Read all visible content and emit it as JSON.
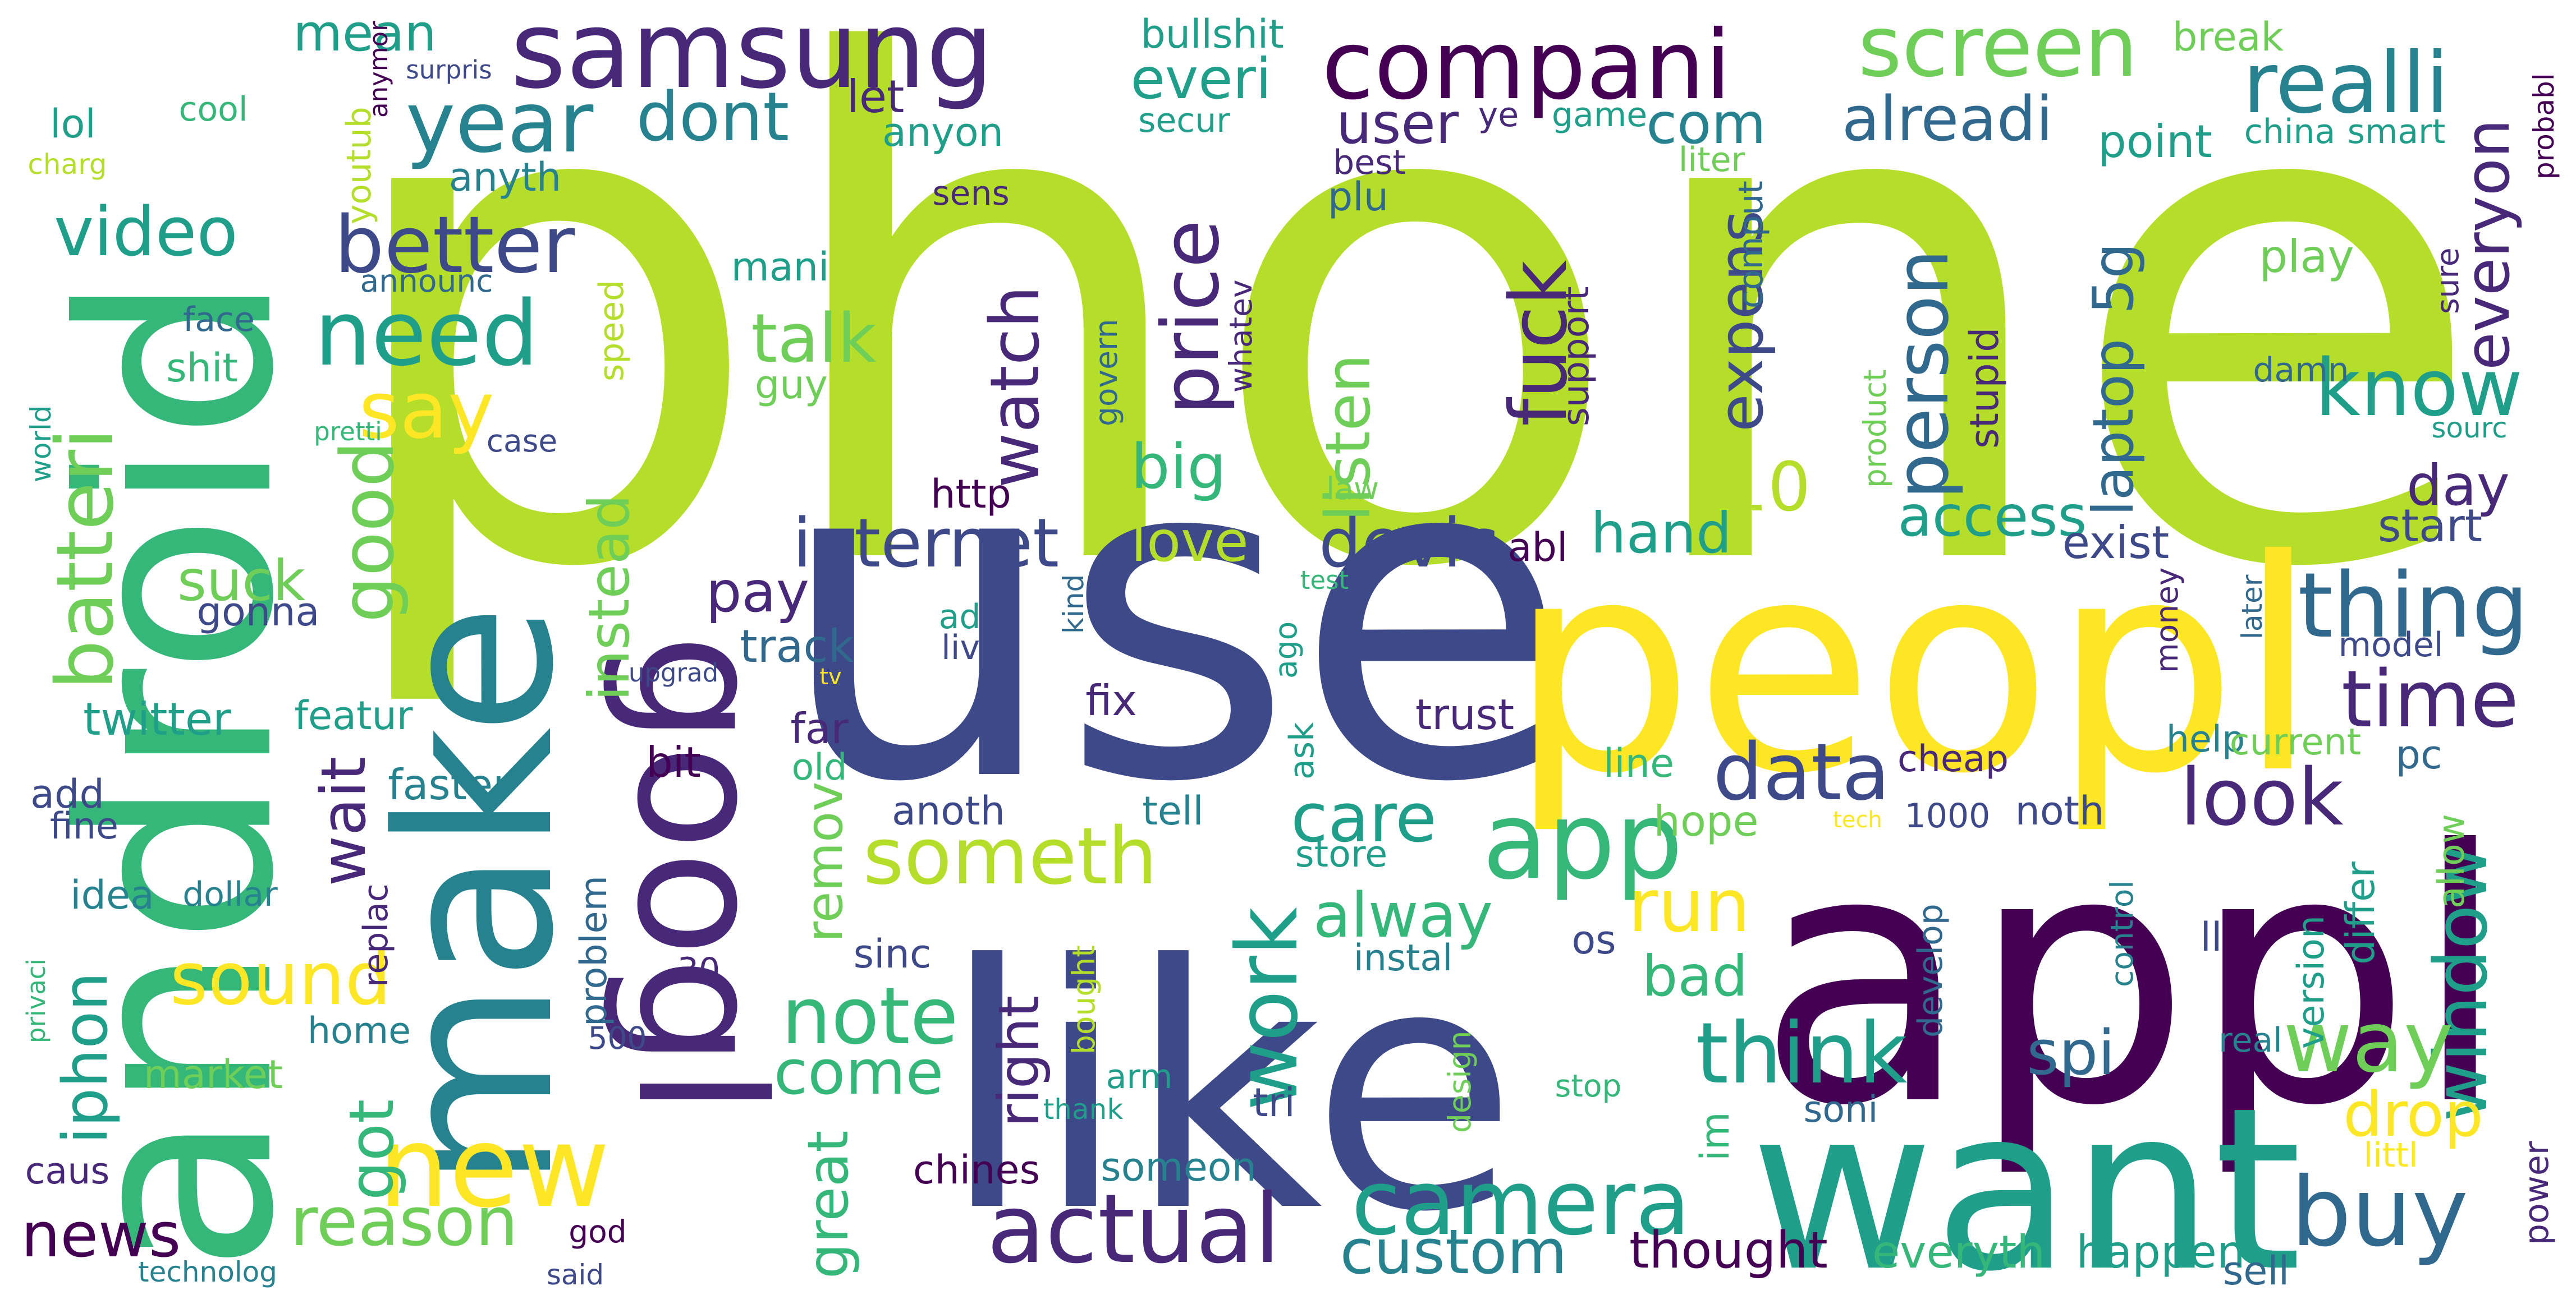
{
  "palette": {
    "dark_purple": "#440154",
    "indigo": "#482878",
    "slate_blue": "#3e4989",
    "steel_blue": "#31688e",
    "teal_blue": "#26828e",
    "teal": "#1f9e89",
    "sea_green": "#35b779",
    "green": "#6ece58",
    "lime": "#b5de2b",
    "yellow": "#fde725"
  },
  "words": [
    {
      "text": "phone",
      "color": "lime",
      "weight": 100
    },
    {
      "text": "use",
      "color": "slate_blue",
      "weight": 82
    },
    {
      "text": "peopl",
      "color": "yellow",
      "weight": 62
    },
    {
      "text": "appl",
      "color": "dark_purple",
      "weight": 70
    },
    {
      "text": "like",
      "color": "slate_blue",
      "weight": 64
    },
    {
      "text": "want",
      "color": "teal",
      "weight": 52
    },
    {
      "text": "android",
      "color": "sea_green",
      "weight": 60
    },
    {
      "text": "make",
      "color": "teal_blue",
      "weight": 56
    },
    {
      "text": "googl",
      "color": "indigo",
      "weight": 48
    },
    {
      "text": "samsung",
      "color": "indigo",
      "weight": 30
    },
    {
      "text": "compani",
      "color": "dark_purple",
      "weight": 28
    },
    {
      "text": "screen",
      "color": "green",
      "weight": 24
    },
    {
      "text": "realli",
      "color": "teal_blue",
      "weight": 24
    },
    {
      "text": "year",
      "color": "teal_blue",
      "weight": 23
    },
    {
      "text": "dont",
      "color": "teal_blue",
      "weight": 18
    },
    {
      "text": "everi",
      "color": "teal",
      "weight": 17
    },
    {
      "text": "alreadi",
      "color": "steel_blue",
      "weight": 17
    },
    {
      "text": "com",
      "color": "teal_blue",
      "weight": 16
    },
    {
      "text": "user",
      "color": "indigo",
      "weight": 16
    },
    {
      "text": "video",
      "color": "teal",
      "weight": 19
    },
    {
      "text": "better",
      "color": "slate_blue",
      "weight": 22
    },
    {
      "text": "need",
      "color": "teal",
      "weight": 25
    },
    {
      "text": "say",
      "color": "yellow",
      "weight": 24
    },
    {
      "text": "batteri",
      "color": "green",
      "weight": 23
    },
    {
      "text": "good",
      "color": "green",
      "weight": 22
    },
    {
      "text": "suck",
      "color": "green",
      "weight": 16
    },
    {
      "text": "watch",
      "color": "indigo",
      "weight": 21
    },
    {
      "text": "talk",
      "color": "green",
      "weight": 19
    },
    {
      "text": "price",
      "color": "indigo",
      "weight": 23
    },
    {
      "text": "fuck",
      "color": "indigo",
      "weight": 23
    },
    {
      "text": "person",
      "color": "steel_blue",
      "weight": 22
    },
    {
      "text": "thing",
      "color": "steel_blue",
      "weight": 25
    },
    {
      "text": "know",
      "color": "teal",
      "weight": 22
    },
    {
      "text": "everyon",
      "color": "indigo",
      "weight": 18
    },
    {
      "text": "internet",
      "color": "slate_blue",
      "weight": 20
    },
    {
      "text": "devic",
      "color": "slate_blue",
      "weight": 20
    },
    {
      "text": "love",
      "color": "lime",
      "weight": 17
    },
    {
      "text": "big",
      "color": "sea_green",
      "weight": 19
    },
    {
      "text": "listen",
      "color": "green",
      "weight": 20
    },
    {
      "text": "expens",
      "color": "slate_blue",
      "weight": 19
    },
    {
      "text": "10",
      "color": "lime",
      "weight": 20
    },
    {
      "text": "access",
      "color": "teal",
      "weight": 18
    },
    {
      "text": "laptop",
      "color": "steel_blue",
      "weight": 17
    },
    {
      "text": "5g",
      "color": "steel_blue",
      "weight": 17
    },
    {
      "text": "time",
      "color": "indigo",
      "weight": 24
    },
    {
      "text": "day",
      "color": "indigo",
      "weight": 16
    },
    {
      "text": "hand",
      "color": "teal",
      "weight": 17
    },
    {
      "text": "data",
      "color": "slate_blue",
      "weight": 24
    },
    {
      "text": "app",
      "color": "sea_green",
      "weight": 30
    },
    {
      "text": "look",
      "color": "indigo",
      "weight": 22
    },
    {
      "text": "run",
      "color": "yellow",
      "weight": 22
    },
    {
      "text": "care",
      "color": "teal",
      "weight": 20
    },
    {
      "text": "window",
      "color": "teal",
      "weight": 22
    },
    {
      "text": "someth",
      "color": "lime",
      "weight": 23
    },
    {
      "text": "alway",
      "color": "sea_green",
      "weight": 18
    },
    {
      "text": "work",
      "color": "teal",
      "weight": 24
    },
    {
      "text": "camera",
      "color": "teal",
      "weight": 27
    },
    {
      "text": "think",
      "color": "teal",
      "weight": 26
    },
    {
      "text": "way",
      "color": "green",
      "weight": 25
    },
    {
      "text": "buy",
      "color": "steel_blue",
      "weight": 27
    },
    {
      "text": "actual",
      "color": "indigo",
      "weight": 28
    },
    {
      "text": "note",
      "color": "sea_green",
      "weight": 24
    },
    {
      "text": "come",
      "color": "sea_green",
      "weight": 19
    },
    {
      "text": "sound",
      "color": "yellow",
      "weight": 21
    },
    {
      "text": "reason",
      "color": "green",
      "weight": 21
    },
    {
      "text": "new",
      "color": "yellow",
      "weight": 30
    },
    {
      "text": "news",
      "color": "dark_purple",
      "weight": 20
    },
    {
      "text": "custom",
      "color": "teal_blue",
      "weight": 19
    },
    {
      "text": "spi",
      "color": "steel_blue",
      "weight": 18
    },
    {
      "text": "drop",
      "color": "yellow",
      "weight": 18
    },
    {
      "text": "instead",
      "color": "green",
      "weight": 18
    },
    {
      "text": "wait",
      "color": "indigo",
      "weight": 19
    },
    {
      "text": "got",
      "color": "sea_green",
      "weight": 19
    },
    {
      "text": "iphon",
      "color": "teal",
      "weight": 19
    },
    {
      "text": "twitter",
      "color": "teal",
      "weight": 15
    },
    {
      "text": "pay",
      "color": "indigo",
      "weight": 17
    },
    {
      "text": "right",
      "color": "indigo",
      "weight": 17
    },
    {
      "text": "great",
      "color": "sea_green",
      "weight": 17
    },
    {
      "text": "remov",
      "color": "green",
      "weight": 15
    },
    {
      "text": "track",
      "color": "steel_blue",
      "weight": 14
    },
    {
      "text": "mean",
      "color": "teal",
      "weight": 16
    },
    {
      "text": "secur",
      "color": "teal",
      "weight": 12
    },
    {
      "text": "ye",
      "color": "indigo",
      "weight": 12
    },
    {
      "text": "game",
      "color": "teal",
      "weight": 12
    },
    {
      "text": "bullshit",
      "color": "teal",
      "weight": 12
    },
    {
      "text": "break",
      "color": "green",
      "weight": 12
    },
    {
      "text": "let",
      "color": "indigo",
      "weight": 14
    },
    {
      "text": "anyon",
      "color": "teal",
      "weight": 14
    },
    {
      "text": "sens",
      "color": "indigo",
      "weight": 12
    },
    {
      "text": "best",
      "color": "indigo",
      "weight": 12
    },
    {
      "text": "plu",
      "color": "steel_blue",
      "weight": 12
    },
    {
      "text": "point",
      "color": "teal",
      "weight": 14
    },
    {
      "text": "china",
      "color": "teal",
      "weight": 12
    },
    {
      "text": "smart",
      "color": "teal",
      "weight": 12
    },
    {
      "text": "probabl",
      "color": "dark_purple",
      "weight": 10
    },
    {
      "text": "liter",
      "color": "green",
      "weight": 12
    },
    {
      "text": "comput",
      "color": "steel_blue",
      "weight": 12
    },
    {
      "text": "play",
      "color": "green",
      "weight": 15
    },
    {
      "text": "lol",
      "color": "teal",
      "weight": 13
    },
    {
      "text": "cool",
      "color": "sea_green",
      "weight": 11
    },
    {
      "text": "charg",
      "color": "lime",
      "weight": 10
    },
    {
      "text": "youtub",
      "color": "lime",
      "weight": 11
    },
    {
      "text": "anymor",
      "color": "dark_purple",
      "weight": 10
    },
    {
      "text": "surpris",
      "color": "slate_blue",
      "weight": 10
    },
    {
      "text": "anyth",
      "color": "teal_blue",
      "weight": 13
    },
    {
      "text": "announc",
      "color": "steel_blue",
      "weight": 11
    },
    {
      "text": "face",
      "color": "steel_blue",
      "weight": 12
    },
    {
      "text": "shit",
      "color": "sea_green",
      "weight": 13
    },
    {
      "text": "speed",
      "color": "lime",
      "weight": 13
    },
    {
      "text": "mani",
      "color": "teal",
      "weight": 14
    },
    {
      "text": "guy",
      "color": "green",
      "weight": 13
    },
    {
      "text": "govern",
      "color": "steel_blue",
      "weight": 12
    },
    {
      "text": "whatev",
      "color": "indigo",
      "weight": 12
    },
    {
      "text": "support",
      "color": "indigo",
      "weight": 12
    },
    {
      "text": "stupid",
      "color": "indigo",
      "weight": 13
    },
    {
      "text": "product",
      "color": "green",
      "weight": 11
    },
    {
      "text": "sure",
      "color": "indigo",
      "weight": 11
    },
    {
      "text": "damn",
      "color": "steel_blue",
      "weight": 12
    },
    {
      "text": "sourc",
      "color": "teal",
      "weight": 11
    },
    {
      "text": "world",
      "color": "teal",
      "weight": 10
    },
    {
      "text": "pretti",
      "color": "sea_green",
      "weight": 10
    },
    {
      "text": "case",
      "color": "slate_blue",
      "weight": 11
    },
    {
      "text": "http",
      "color": "dark_purple",
      "weight": 13
    },
    {
      "text": "law",
      "color": "green",
      "weight": 11
    },
    {
      "text": "abl",
      "color": "dark_purple",
      "weight": 13
    },
    {
      "text": "exist",
      "color": "slate_blue",
      "weight": 14
    },
    {
      "text": "start",
      "color": "slate_blue",
      "weight": 14
    },
    {
      "text": "test",
      "color": "sea_green",
      "weight": 9
    },
    {
      "text": "gonna",
      "color": "slate_blue",
      "weight": 13
    },
    {
      "text": "upgrad",
      "color": "slate_blue",
      "weight": 10
    },
    {
      "text": "tv",
      "color": "yellow",
      "weight": 9
    },
    {
      "text": "ad",
      "color": "teal",
      "weight": 12
    },
    {
      "text": "live",
      "color": "slate_blue",
      "weight": 12
    },
    {
      "text": "kind",
      "color": "steel_blue",
      "weight": 11
    },
    {
      "text": "ago",
      "color": "teal",
      "weight": 12
    },
    {
      "text": "ask",
      "color": "teal",
      "weight": 12
    },
    {
      "text": "money",
      "color": "indigo",
      "weight": 12
    },
    {
      "text": "later",
      "color": "steel_blue",
      "weight": 11
    },
    {
      "text": "model",
      "color": "slate_blue",
      "weight": 12
    },
    {
      "text": "featur",
      "color": "teal",
      "weight": 14
    },
    {
      "text": "far",
      "color": "indigo",
      "weight": 14
    },
    {
      "text": "fix",
      "color": "indigo",
      "weight": 14
    },
    {
      "text": "trust",
      "color": "indigo",
      "weight": 14
    },
    {
      "text": "help",
      "color": "teal_blue",
      "weight": 13
    },
    {
      "text": "current",
      "color": "green",
      "weight": 13
    },
    {
      "text": "pc",
      "color": "steel_blue",
      "weight": 14
    },
    {
      "text": "add",
      "color": "slate_blue",
      "weight": 14
    },
    {
      "text": "faster",
      "color": "teal_blue",
      "weight": 15
    },
    {
      "text": "bit",
      "color": "dark_purple",
      "weight": 14
    },
    {
      "text": "old",
      "color": "sea_green",
      "weight": 13
    },
    {
      "text": "line",
      "color": "sea_green",
      "weight": 13
    },
    {
      "text": "cheap",
      "color": "indigo",
      "weight": 13
    },
    {
      "text": "fine",
      "color": "slate_blue",
      "weight": 13
    },
    {
      "text": "hope",
      "color": "green",
      "weight": 14
    },
    {
      "text": "tech",
      "color": "yellow",
      "weight": 9
    },
    {
      "text": "1000",
      "color": "slate_blue",
      "weight": 12
    },
    {
      "text": "noth",
      "color": "slate_blue",
      "weight": 14
    },
    {
      "text": "allow",
      "color": "green",
      "weight": 14
    },
    {
      "text": "idea",
      "color": "teal_blue",
      "weight": 13
    },
    {
      "text": "dollar",
      "color": "teal_blue",
      "weight": 12
    },
    {
      "text": "anoth",
      "color": "slate_blue",
      "weight": 13
    },
    {
      "text": "tell",
      "color": "teal_blue",
      "weight": 13
    },
    {
      "text": "store",
      "color": "teal",
      "weight": 13
    },
    {
      "text": "differ",
      "color": "teal",
      "weight": 13
    },
    {
      "text": "problem",
      "color": "steel_blue",
      "weight": 13
    },
    {
      "text": "replac",
      "color": "indigo",
      "weight": 12
    },
    {
      "text": "sinc",
      "color": "slate_blue",
      "weight": 13
    },
    {
      "text": "instal",
      "color": "teal_blue",
      "weight": 13
    },
    {
      "text": "develop",
      "color": "steel_blue",
      "weight": 12
    },
    {
      "text": "control",
      "color": "teal_blue",
      "weight": 11
    },
    {
      "text": "version",
      "color": "teal",
      "weight": 12
    },
    {
      "text": "os",
      "color": "slate_blue",
      "weight": 13
    },
    {
      "text": "bad",
      "color": "sea_green",
      "weight": 17
    },
    {
      "text": "30",
      "color": "indigo",
      "weight": 12
    },
    {
      "text": "bought",
      "color": "lime",
      "weight": 11
    },
    {
      "text": "ll",
      "color": "slate_blue",
      "weight": 13
    },
    {
      "text": "privaci",
      "color": "sea_green",
      "weight": 10
    },
    {
      "text": "500",
      "color": "slate_blue",
      "weight": 11
    },
    {
      "text": "design",
      "color": "green",
      "weight": 11
    },
    {
      "text": "home",
      "color": "teal_blue",
      "weight": 13
    },
    {
      "text": "arm",
      "color": "teal",
      "weight": 12
    },
    {
      "text": "real",
      "color": "teal_blue",
      "weight": 12
    },
    {
      "text": "market",
      "color": "green",
      "weight": 13
    },
    {
      "text": "stop",
      "color": "sea_green",
      "weight": 11
    },
    {
      "text": "thank",
      "color": "teal",
      "weight": 10
    },
    {
      "text": "tri",
      "color": "slate_blue",
      "weight": 14
    },
    {
      "text": "im",
      "color": "sea_green",
      "weight": 13
    },
    {
      "text": "soni",
      "color": "steel_blue",
      "weight": 13
    },
    {
      "text": "littl",
      "color": "yellow",
      "weight": 12
    },
    {
      "text": "power",
      "color": "indigo",
      "weight": 12
    },
    {
      "text": "caus",
      "color": "indigo",
      "weight": 13
    },
    {
      "text": "chines",
      "color": "dark_purple",
      "weight": 13
    },
    {
      "text": "someon",
      "color": "teal_blue",
      "weight": 13
    },
    {
      "text": "thought",
      "color": "dark_purple",
      "weight": 16
    },
    {
      "text": "everyth",
      "color": "sea_green",
      "weight": 14
    },
    {
      "text": "happen",
      "color": "teal",
      "weight": 15
    },
    {
      "text": "sell",
      "color": "steel_blue",
      "weight": 13
    },
    {
      "text": "god",
      "color": "dark_purple",
      "weight": 11
    },
    {
      "text": "technolog",
      "color": "teal_blue",
      "weight": 10
    },
    {
      "text": "said",
      "color": "slate_blue",
      "weight": 10
    }
  ]
}
